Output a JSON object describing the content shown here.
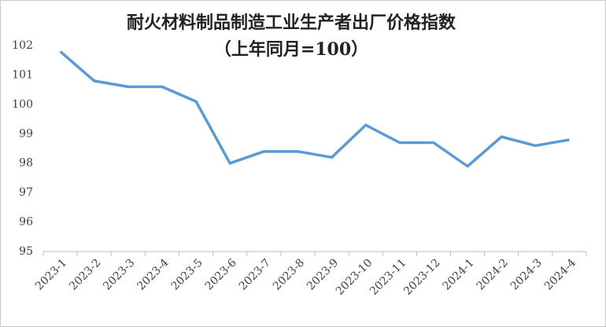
{
  "chart_data": {
    "type": "line",
    "title": "耐火材料制品制造工业生产者出厂价格指数",
    "subtitle": "（上年同月=100）",
    "categories": [
      "2023-1",
      "2023-2",
      "2023-3",
      "2023-4",
      "2023-5",
      "2023-6",
      "2023-7",
      "2023-8",
      "2023-9",
      "2023-10",
      "2023-11",
      "2023-12",
      "2024-1",
      "2024-2",
      "2024-3",
      "2024-4"
    ],
    "values": [
      101.8,
      100.8,
      100.6,
      100.6,
      100.1,
      98.0,
      98.4,
      98.4,
      98.2,
      99.3,
      98.7,
      98.7,
      97.9,
      98.9,
      98.6,
      98.8
    ],
    "color": "#5b9bd5",
    "ylim": [
      95,
      102
    ],
    "yticks": [
      95,
      96,
      97,
      98,
      99,
      100,
      101,
      102
    ],
    "grid": false
  }
}
